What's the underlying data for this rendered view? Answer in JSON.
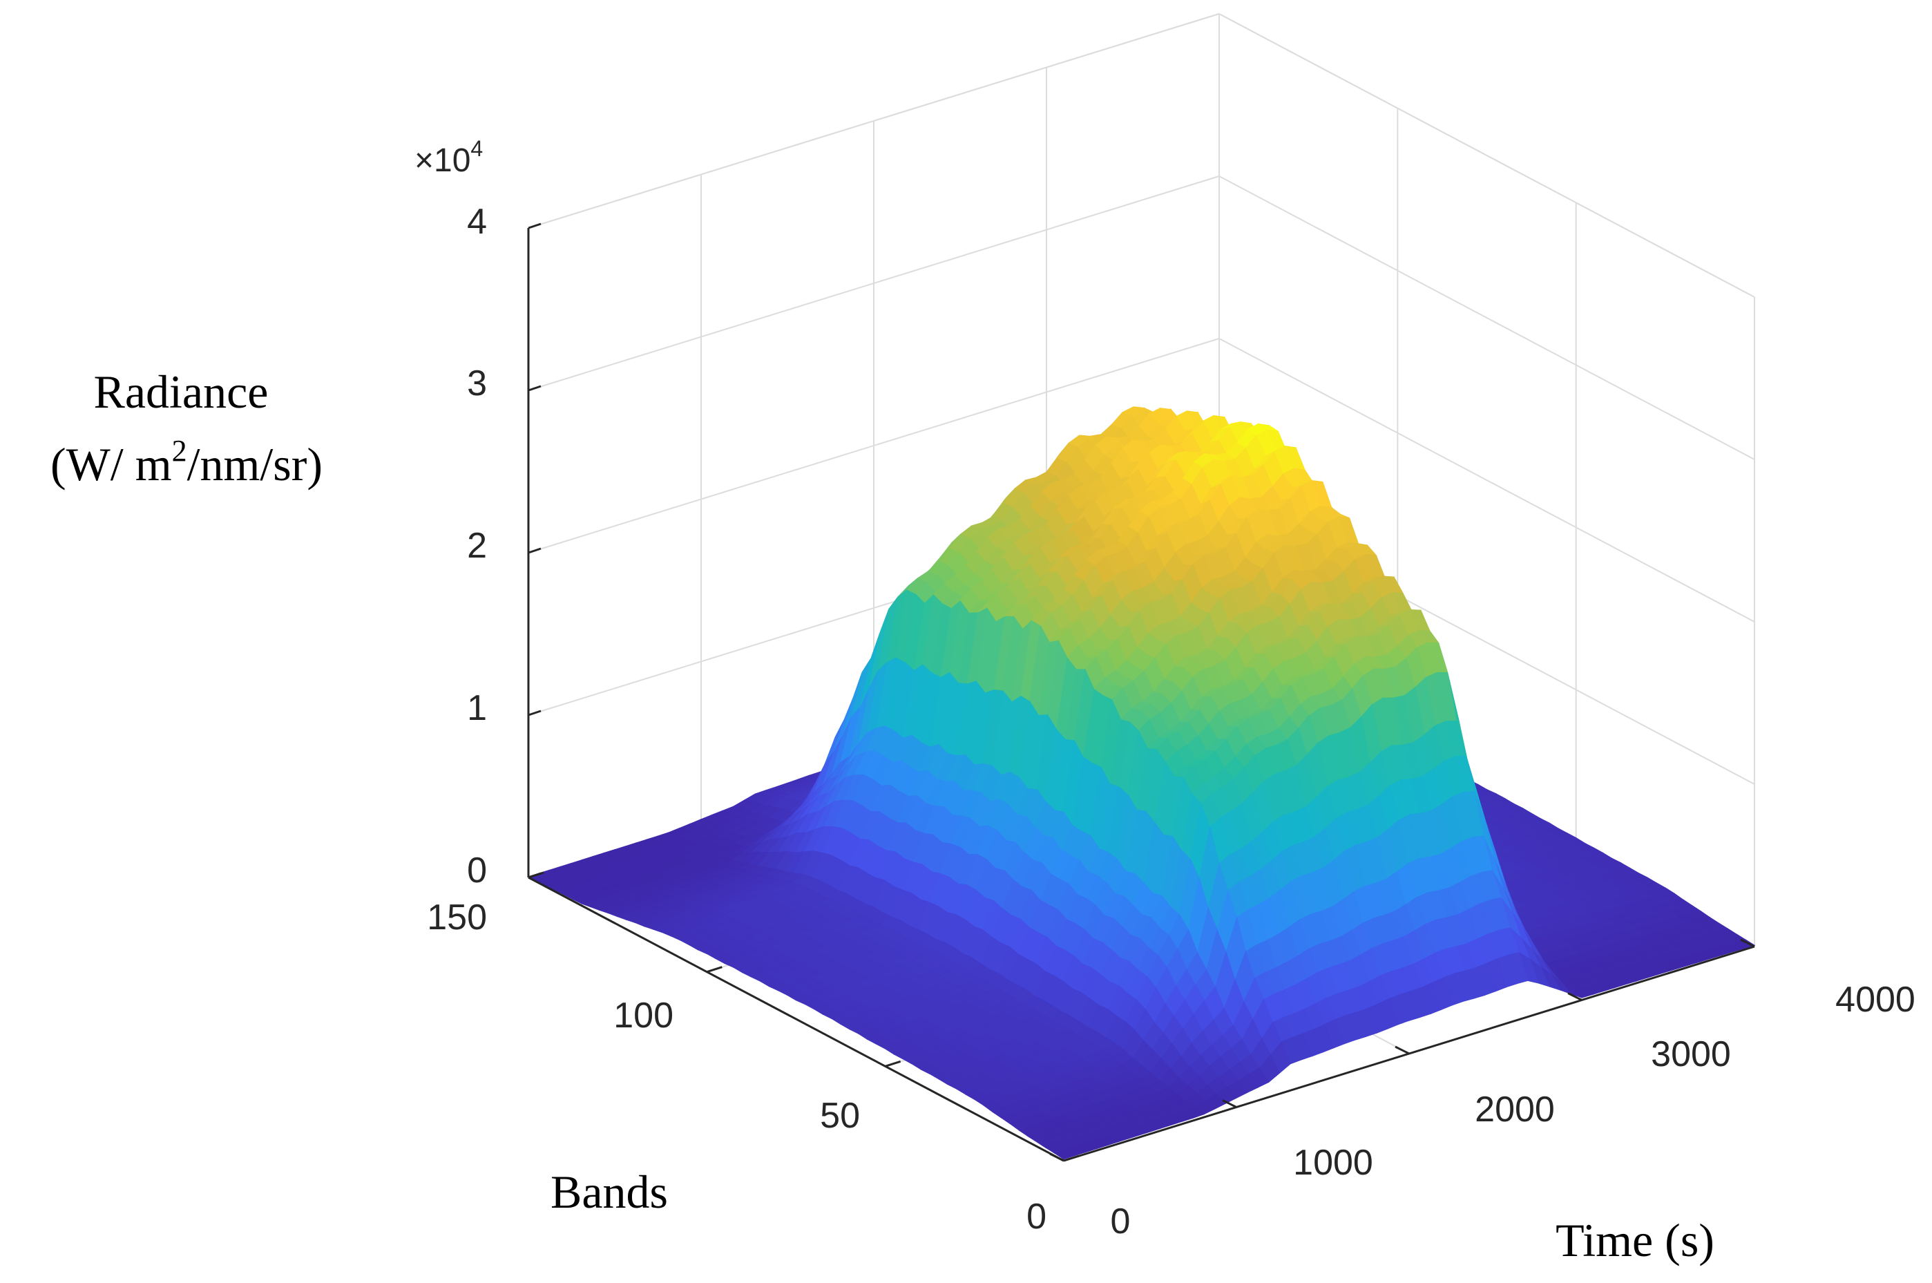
{
  "chart_data": {
    "type": "surface",
    "title": "",
    "axes": {
      "z": {
        "label_line1": "Radiance",
        "label_line2_prefix": "(W/ m",
        "label_line2_sup": "2",
        "label_line2_suffix": "/nm/sr)",
        "multiplier_prefix": "×10",
        "multiplier_exp": "4",
        "range": [
          0,
          40000
        ],
        "ticks": [
          0,
          10000,
          20000,
          30000,
          40000
        ],
        "tick_labels": [
          "0",
          "1",
          "2",
          "3",
          "4"
        ]
      },
      "bands": {
        "label": "Bands",
        "range": [
          0,
          150
        ],
        "ticks": [
          0,
          50,
          100,
          150
        ],
        "tick_labels": [
          "0",
          "50",
          "100",
          "150"
        ]
      },
      "time": {
        "label": "Time (s)",
        "range": [
          0,
          4000
        ],
        "ticks": [
          0,
          1000,
          2000,
          3000,
          4000
        ],
        "tick_labels": [
          "0",
          "1000",
          "2000",
          "3000",
          "4000"
        ]
      }
    },
    "grid": true,
    "colormap": "parula",
    "surface_profile": {
      "description_source": "estimated from image",
      "time_s": [
        0,
        800,
        1200,
        1300,
        1500,
        2300,
        2700,
        3000,
        3500,
        3800,
        4000
      ],
      "peak_radiance_by_time": [
        1200,
        2000,
        12000,
        20000,
        22000,
        27000,
        28000,
        1800,
        1500,
        1200,
        1000
      ],
      "shoulder_radiance_by_time": [
        1000,
        1500,
        11000,
        17000,
        18000,
        15000,
        17000,
        1500,
        1300,
        1000,
        800
      ],
      "band_peak_index": 70
    }
  }
}
